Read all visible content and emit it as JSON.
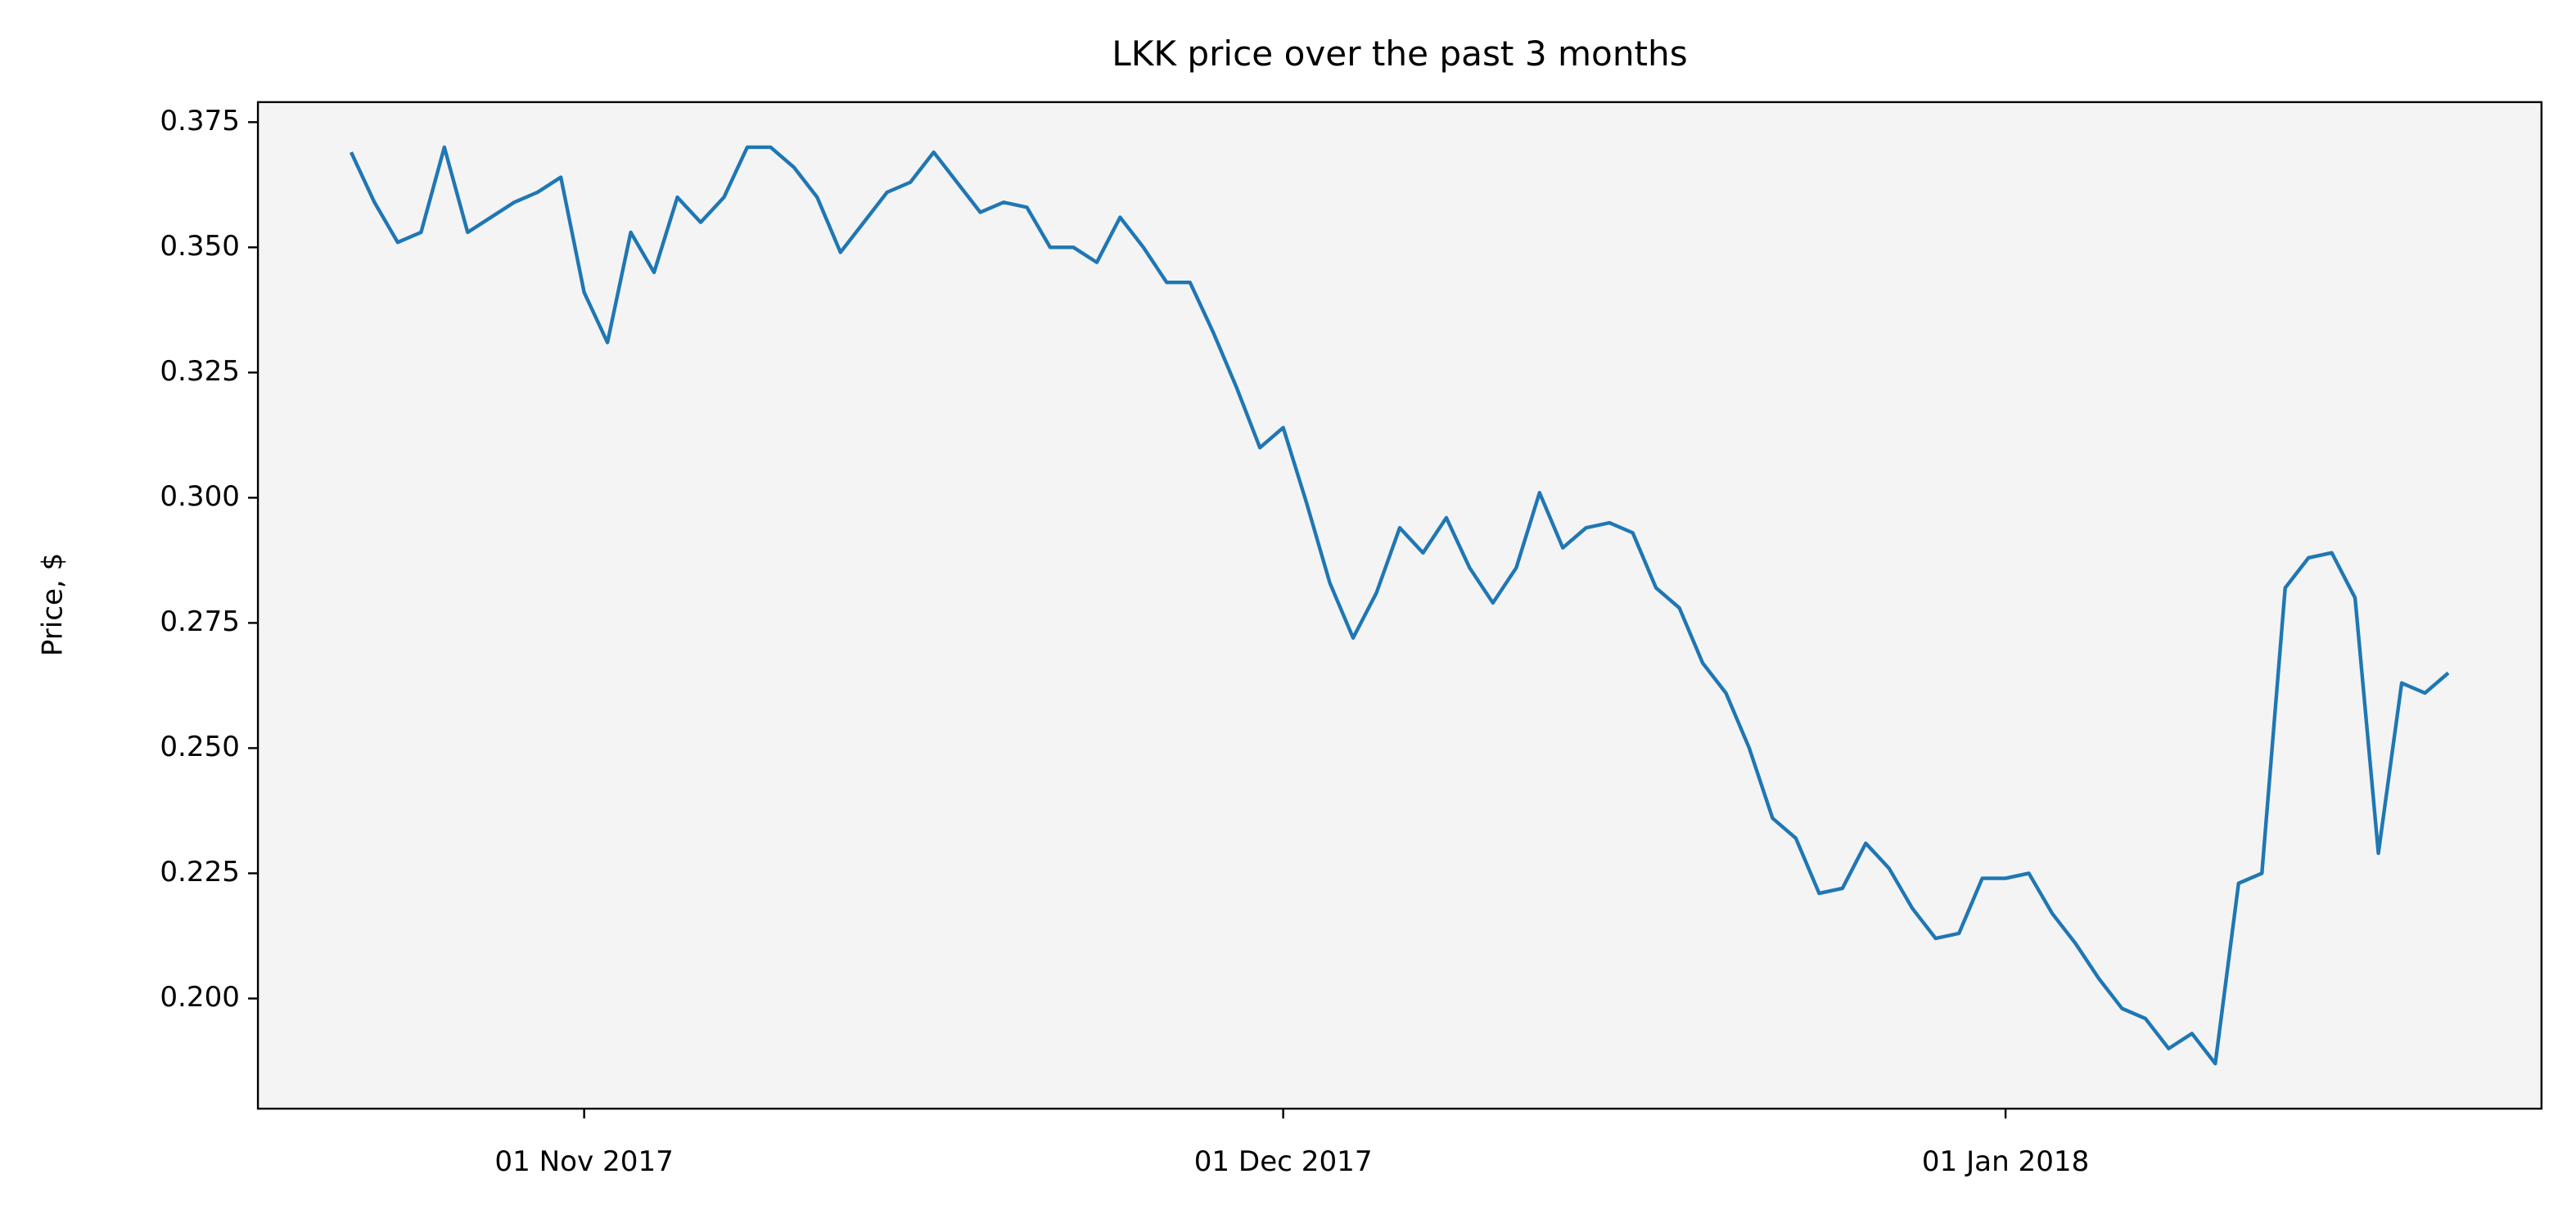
{
  "chart_data": {
    "type": "line",
    "title": "LKK price over the past 3 months",
    "y_label": "Price, $",
    "x": [
      "2017-10-22",
      "2017-10-23",
      "2017-10-24",
      "2017-10-25",
      "2017-10-26",
      "2017-10-27",
      "2017-10-28",
      "2017-10-29",
      "2017-10-30",
      "2017-10-31",
      "2017-11-01",
      "2017-11-02",
      "2017-11-03",
      "2017-11-04",
      "2017-11-05",
      "2017-11-06",
      "2017-11-07",
      "2017-11-08",
      "2017-11-09",
      "2017-11-10",
      "2017-11-11",
      "2017-11-12",
      "2017-11-13",
      "2017-11-14",
      "2017-11-15",
      "2017-11-16",
      "2017-11-17",
      "2017-11-18",
      "2017-11-19",
      "2017-11-20",
      "2017-11-21",
      "2017-11-22",
      "2017-11-23",
      "2017-11-24",
      "2017-11-25",
      "2017-11-26",
      "2017-11-27",
      "2017-11-28",
      "2017-11-29",
      "2017-11-30",
      "2017-12-01",
      "2017-12-02",
      "2017-12-03",
      "2017-12-04",
      "2017-12-05",
      "2017-12-06",
      "2017-12-07",
      "2017-12-08",
      "2017-12-09",
      "2017-12-10",
      "2017-12-11",
      "2017-12-12",
      "2017-12-13",
      "2017-12-14",
      "2017-12-15",
      "2017-12-16",
      "2017-12-17",
      "2017-12-18",
      "2017-12-19",
      "2017-12-20",
      "2017-12-21",
      "2017-12-22",
      "2017-12-23",
      "2017-12-24",
      "2017-12-25",
      "2017-12-26",
      "2017-12-27",
      "2017-12-28",
      "2017-12-29",
      "2017-12-30",
      "2017-12-31",
      "2018-01-01",
      "2018-01-02",
      "2018-01-03",
      "2018-01-04",
      "2018-01-05",
      "2018-01-06",
      "2018-01-07",
      "2018-01-08",
      "2018-01-09",
      "2018-01-10",
      "2018-01-11",
      "2018-01-12",
      "2018-01-13",
      "2018-01-14",
      "2018-01-15",
      "2018-01-16",
      "2018-01-17",
      "2018-01-18",
      "2018-01-19",
      "2018-01-20"
    ],
    "series": [
      {
        "name": "LKK",
        "color": "#1f77b4",
        "values": [
          0.369,
          0.359,
          0.351,
          0.353,
          0.37,
          0.353,
          0.356,
          0.359,
          0.361,
          0.364,
          0.341,
          0.331,
          0.353,
          0.345,
          0.36,
          0.355,
          0.36,
          0.37,
          0.37,
          0.366,
          0.36,
          0.349,
          0.355,
          0.361,
          0.363,
          0.369,
          0.363,
          0.357,
          0.359,
          0.358,
          0.35,
          0.35,
          0.347,
          0.356,
          0.35,
          0.343,
          0.343,
          0.333,
          0.322,
          0.31,
          0.314,
          0.299,
          0.283,
          0.272,
          0.281,
          0.294,
          0.289,
          0.296,
          0.286,
          0.279,
          0.286,
          0.301,
          0.29,
          0.294,
          0.295,
          0.293,
          0.282,
          0.278,
          0.267,
          0.261,
          0.25,
          0.236,
          0.232,
          0.221,
          0.222,
          0.231,
          0.226,
          0.218,
          0.212,
          0.213,
          0.224,
          0.224,
          0.225,
          0.217,
          0.211,
          0.204,
          0.198,
          0.196,
          0.19,
          0.193,
          0.187,
          0.223,
          0.225,
          0.282,
          0.288,
          0.289,
          0.28,
          0.229,
          0.263,
          0.261,
          0.265
        ]
      }
    ],
    "xlim": [
      "2017-10-18",
      "2018-01-24"
    ],
    "xticks": [
      {
        "value": "2017-11-01",
        "label": "01 Nov 2017"
      },
      {
        "value": "2017-12-01",
        "label": "01 Dec 2017"
      },
      {
        "value": "2018-01-01",
        "label": "01 Jan 2018"
      }
    ],
    "ylim": [
      0.178,
      0.379
    ],
    "yticks": [
      {
        "value": 0.2,
        "label": "0.200"
      },
      {
        "value": 0.225,
        "label": "0.225"
      },
      {
        "value": 0.25,
        "label": "0.250"
      },
      {
        "value": 0.275,
        "label": "0.275"
      },
      {
        "value": 0.3,
        "label": "0.300"
      },
      {
        "value": 0.325,
        "label": "0.325"
      },
      {
        "value": 0.35,
        "label": "0.350"
      },
      {
        "value": 0.375,
        "label": "0.375"
      }
    ],
    "background": "#f4f4f4",
    "grid": false
  }
}
